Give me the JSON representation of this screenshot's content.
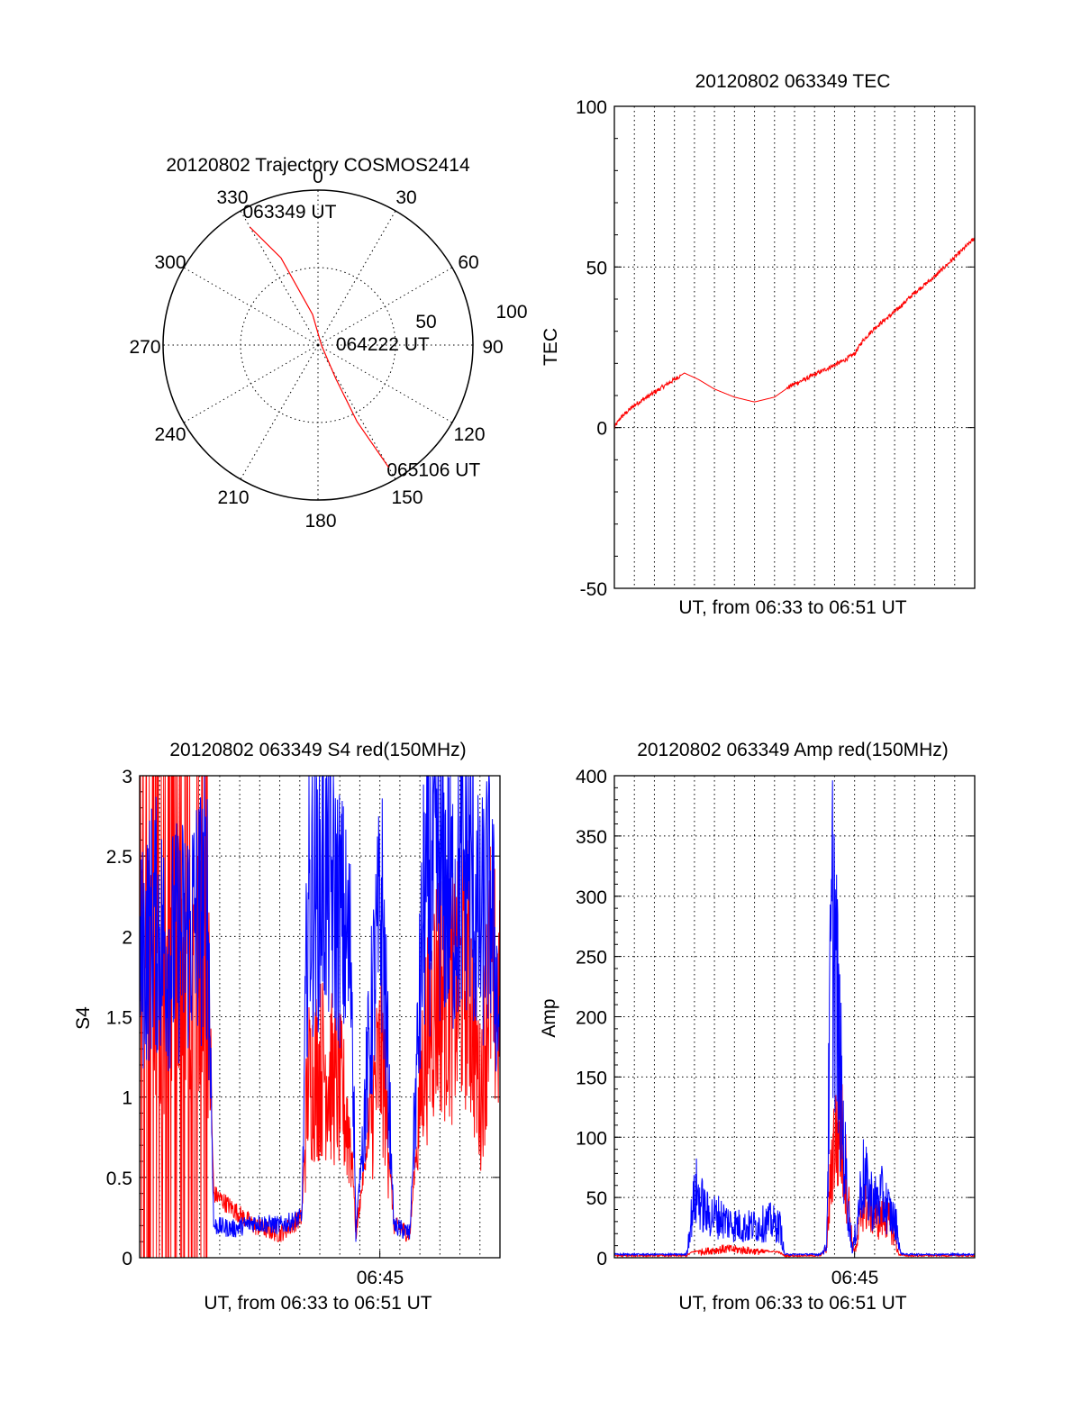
{
  "chart_data": [
    {
      "type": "polar",
      "title": "20120802 Trajectory COSMOS2414",
      "azimuth_labels": [
        "0",
        "30",
        "60",
        "90",
        "120",
        "150",
        "180",
        "210",
        "240",
        "270",
        "300",
        "330"
      ],
      "radial_labels": [
        "50",
        "100"
      ],
      "track_color": "#ff0000",
      "track": [
        {
          "az": 330,
          "el": 11,
          "label": "063349 UT"
        },
        {
          "az": 337,
          "el": 35
        },
        {
          "az": 350,
          "el": 72
        },
        {
          "az": 90,
          "el": 88,
          "label": "064222 UT"
        },
        {
          "az": 152,
          "el": 68
        },
        {
          "az": 153,
          "el": 40
        },
        {
          "az": 150,
          "el": 8,
          "label": "065106 UT"
        }
      ]
    },
    {
      "type": "line",
      "title": "20120802 063349 TEC",
      "xlabel": "UT, from 06:33 to 06:51 UT",
      "ylabel": "TEC",
      "xlim": [
        0,
        18
      ],
      "ylim": [
        -50,
        100
      ],
      "yticks": [
        "-50",
        "0",
        "50",
        "100"
      ],
      "series": [
        {
          "color": "#ff0000",
          "x": [
            0,
            0.3,
            1.0,
            2.0,
            3.0,
            3.5,
            4.2,
            5.0,
            6.0,
            7.0,
            8.0,
            8.8,
            9.5,
            10.5,
            11.5,
            12.0,
            12.4,
            13.0,
            14.0,
            15.0,
            16.0,
            17.0,
            18.0
          ],
          "y": [
            0,
            3,
            7,
            11,
            15,
            17,
            15,
            12,
            9.5,
            8,
            9.5,
            13,
            15,
            18,
            21,
            23,
            27,
            31,
            36,
            42,
            47,
            53,
            59
          ]
        }
      ]
    },
    {
      "type": "line",
      "title": "20120802 063349 S4 red(150MHz)",
      "xlabel": "UT, from 06:33 to 06:51 UT",
      "ylabel": "S4",
      "xlim": [
        0,
        18
      ],
      "ylim": [
        0,
        3
      ],
      "yticks": [
        "0",
        "0.5",
        "1",
        "1.5",
        "2",
        "2.5",
        "3"
      ],
      "xtick_label": "06:45",
      "xtick_at": 12,
      "series": [
        {
          "color": "#ff0000",
          "segments": [
            {
              "x": [
                0,
                0.7,
                1.4,
                2.2,
                3.4,
                3.7,
                4.7,
                5.7,
                7.0,
                8.1,
                8.4,
                9.2,
                10.1,
                10.6,
                10.8,
                11.7,
                12.1,
                12.7,
                13.5,
                14.2,
                14.9,
                15.7,
                16.4,
                17.0,
                17.5,
                18.0
              ],
              "y": [
                1.7,
                1.8,
                1.6,
                1.7,
                1.8,
                0.4,
                0.3,
                0.2,
                0.15,
                0.25,
                1.1,
                1.2,
                1.0,
                0.7,
                0.15,
                1.0,
                1.3,
                0.2,
                0.15,
                1.3,
                1.7,
                1.6,
                1.8,
                1.0,
                1.8,
                1.5
              ]
            }
          ]
        },
        {
          "color": "#0000ff",
          "segments": [
            {
              "x": [
                0,
                0.7,
                1.4,
                2.2,
                3.4,
                3.7,
                4.7,
                5.7,
                7.0,
                8.1,
                8.4,
                9.2,
                10.1,
                10.6,
                10.8,
                11.7,
                12.1,
                12.7,
                13.5,
                14.2,
                14.9,
                15.7,
                16.4,
                17.0,
                17.5,
                18.0
              ],
              "y": [
                1.8,
                2.1,
                1.9,
                2.0,
                2.2,
                0.2,
                0.18,
                0.22,
                0.2,
                0.25,
                2.2,
                2.4,
                2.1,
                1.8,
                0.15,
                1.7,
                2.2,
                0.2,
                0.15,
                2.2,
                2.4,
                2.2,
                2.5,
                2.0,
                2.3,
                1.4
              ]
            }
          ]
        }
      ]
    },
    {
      "type": "line",
      "title": "20120802 063349 Amp red(150MHz)",
      "xlabel": "UT, from 06:33 to 06:51 UT",
      "ylabel": "Amp",
      "xlim": [
        0,
        18
      ],
      "ylim": [
        0,
        400
      ],
      "yticks": [
        "0",
        "50",
        "100",
        "150",
        "200",
        "250",
        "300",
        "350",
        "400"
      ],
      "xtick_label": "06:45",
      "xtick_at": 12,
      "series": [
        {
          "color": "#ff0000",
          "x": [
            0,
            3.6,
            3.9,
            4.5,
            5.5,
            6.5,
            7.5,
            8.2,
            8.5,
            10.3,
            10.6,
            10.9,
            11.3,
            11.6,
            11.9,
            12.1,
            12.4,
            12.8,
            13.2,
            13.6,
            14.0,
            14.2,
            14.6,
            18.0
          ],
          "y": [
            1,
            1,
            4,
            6,
            8,
            7,
            5,
            4,
            1,
            1,
            8,
            100,
            120,
            70,
            10,
            8,
            50,
            45,
            35,
            38,
            20,
            2,
            1,
            1
          ]
        },
        {
          "color": "#0000ff",
          "x": [
            0,
            3.6,
            3.9,
            4.1,
            4.6,
            5.2,
            5.8,
            6.5,
            7.2,
            7.8,
            8.3,
            8.5,
            10.3,
            10.6,
            10.8,
            10.95,
            11.15,
            11.4,
            11.7,
            11.9,
            12.1,
            12.4,
            12.7,
            13.0,
            13.4,
            13.8,
            14.1,
            14.3,
            14.6,
            18.0
          ],
          "y": [
            2,
            2,
            45,
            60,
            40,
            38,
            32,
            28,
            30,
            33,
            28,
            2,
            2,
            10,
            250,
            330,
            220,
            120,
            40,
            5,
            30,
            75,
            60,
            50,
            55,
            40,
            30,
            3,
            2,
            2
          ]
        }
      ]
    }
  ]
}
